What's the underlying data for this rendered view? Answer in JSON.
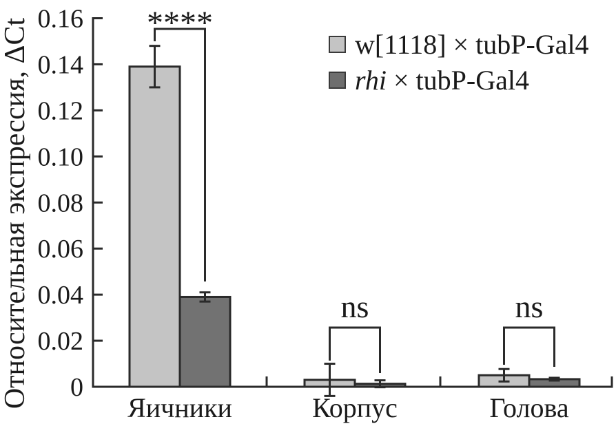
{
  "figure": {
    "background": "#ffffff",
    "text_color": "#1a1a1a",
    "line_color": "#2a2a2a"
  },
  "chart_data": {
    "type": "bar",
    "title": "",
    "ylabel": "Относительная экспрессия, ΔCt",
    "xlabel": "",
    "categories": [
      "Яичники",
      "Корпус",
      "Голова"
    ],
    "series": [
      {
        "name": "w[1118] × tubP-Gal4",
        "color": "#c4c4c4",
        "values": [
          0.139,
          0.003,
          0.005
        ],
        "errors": [
          0.009,
          0.007,
          0.0027
        ]
      },
      {
        "name": "rhi × tubP-Gal4",
        "color": "#727272",
        "values": [
          0.039,
          0.0013,
          0.0033
        ],
        "errors": [
          0.002,
          0.0015,
          0.0006
        ]
      }
    ],
    "ylim": [
      0,
      0.16
    ],
    "yticks": [
      0,
      0.02,
      0.04,
      0.06,
      0.08,
      0.1,
      0.12,
      0.14,
      0.16
    ],
    "ytick_labels": [
      "0",
      "0.02",
      "0.04",
      "0.06",
      "0.08",
      "0.10",
      "0.12",
      "0.14",
      "0.16"
    ],
    "grid": false,
    "legend_position": "top-right",
    "annotations": [
      {
        "category": "Яичники",
        "label": "****"
      },
      {
        "category": "Корпус",
        "label": "ns"
      },
      {
        "category": "Голова",
        "label": "ns"
      }
    ]
  },
  "legend": {
    "items": [
      {
        "label_italic": "",
        "label_text": "w[1118] × tubP-Gal4",
        "color": "#c4c4c4"
      },
      {
        "label_italic": "rhi",
        "label_text": " × tubP-Gal4",
        "color": "#6e6e6e"
      }
    ]
  }
}
